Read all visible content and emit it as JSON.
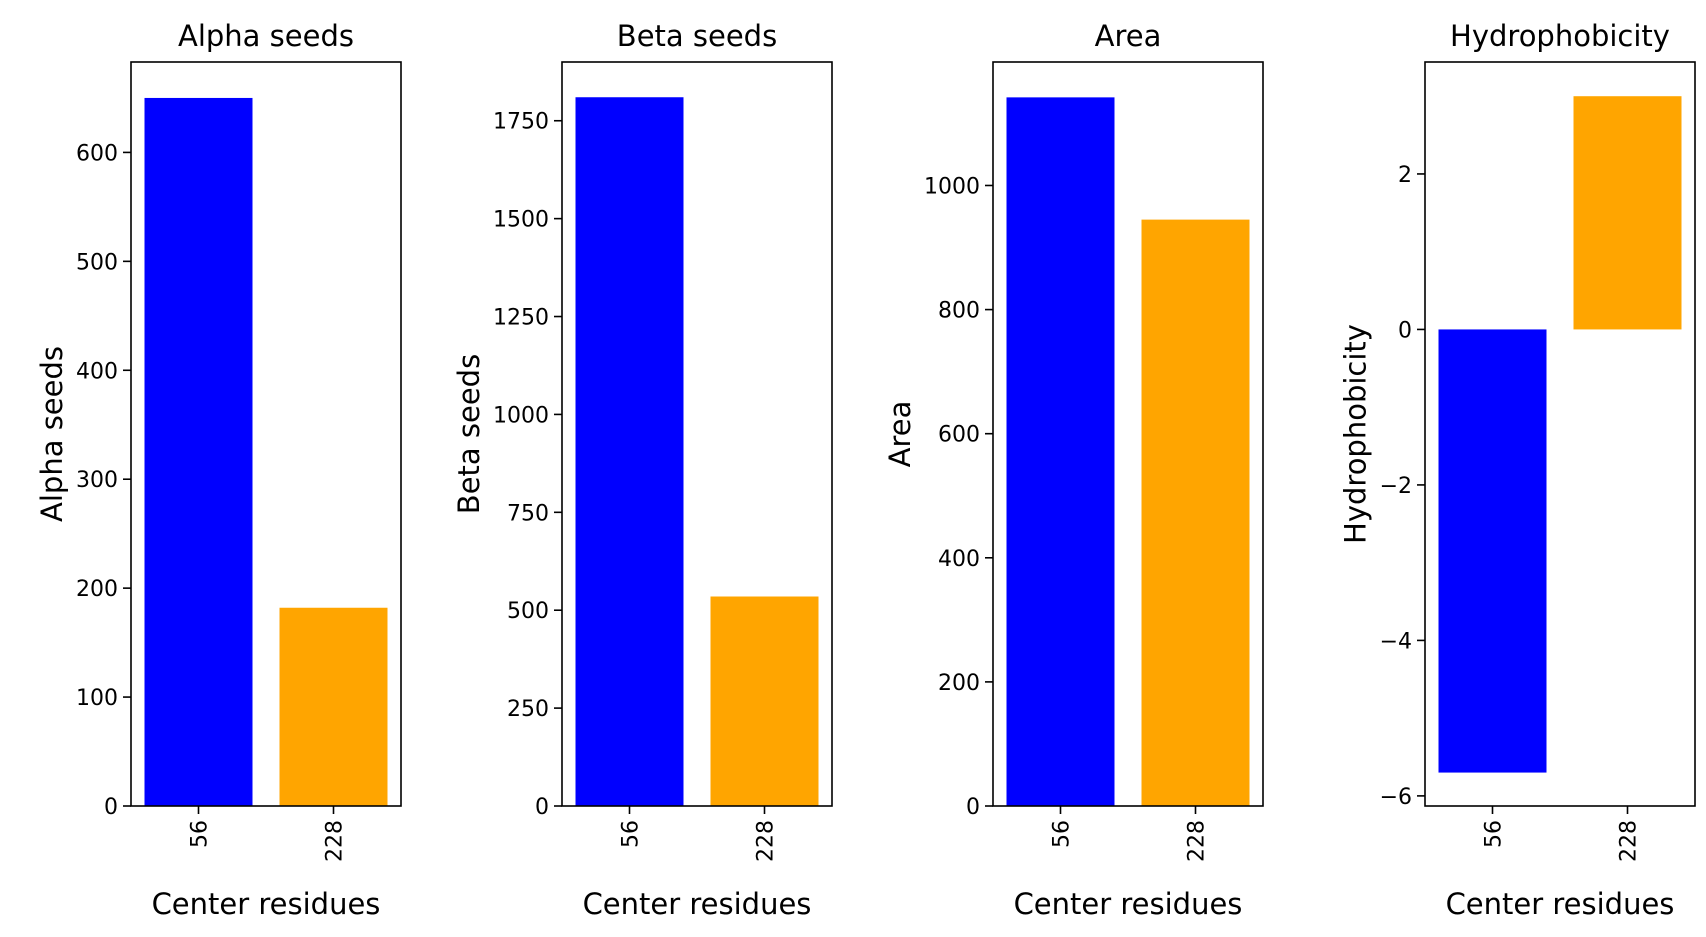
{
  "chart_data": [
    {
      "type": "bar",
      "title": "Alpha seeds",
      "xlabel": "Center residues",
      "ylabel": "Alpha seeds",
      "categories": [
        "56",
        "228"
      ],
      "values": [
        650,
        182
      ],
      "colors": [
        "#0000ff",
        "#ffa500"
      ],
      "ylim": [
        0,
        683
      ],
      "yticks": [
        0,
        100,
        200,
        300,
        400,
        500,
        600
      ],
      "grid": false
    },
    {
      "type": "bar",
      "title": "Beta seeds",
      "xlabel": "Center residues",
      "ylabel": "Beta seeds",
      "categories": [
        "56",
        "228"
      ],
      "values": [
        1810,
        535
      ],
      "colors": [
        "#0000ff",
        "#ffa500"
      ],
      "ylim": [
        0,
        1900
      ],
      "yticks": [
        0,
        250,
        500,
        750,
        1000,
        1250,
        1500,
        1750
      ],
      "grid": false
    },
    {
      "type": "bar",
      "title": "Area",
      "xlabel": "Center residues",
      "ylabel": "Area",
      "categories": [
        "56",
        "228"
      ],
      "values": [
        1142,
        945
      ],
      "colors": [
        "#0000ff",
        "#ffa500"
      ],
      "ylim": [
        0,
        1199
      ],
      "yticks": [
        0,
        200,
        400,
        600,
        800,
        1000
      ],
      "grid": false
    },
    {
      "type": "bar",
      "title": "Hydrophobicity",
      "xlabel": "Center residues",
      "ylabel": "Hydrophobicity",
      "categories": [
        "56",
        "228"
      ],
      "values": [
        -5.7,
        3.0
      ],
      "colors": [
        "#0000ff",
        "#ffa500"
      ],
      "ylim": [
        -6.13,
        3.44
      ],
      "yticks": [
        -6,
        -4,
        -2,
        0,
        2
      ],
      "ytick_labels": [
        "−6",
        "−4",
        "−2",
        "0",
        "2"
      ],
      "grid": false
    }
  ]
}
